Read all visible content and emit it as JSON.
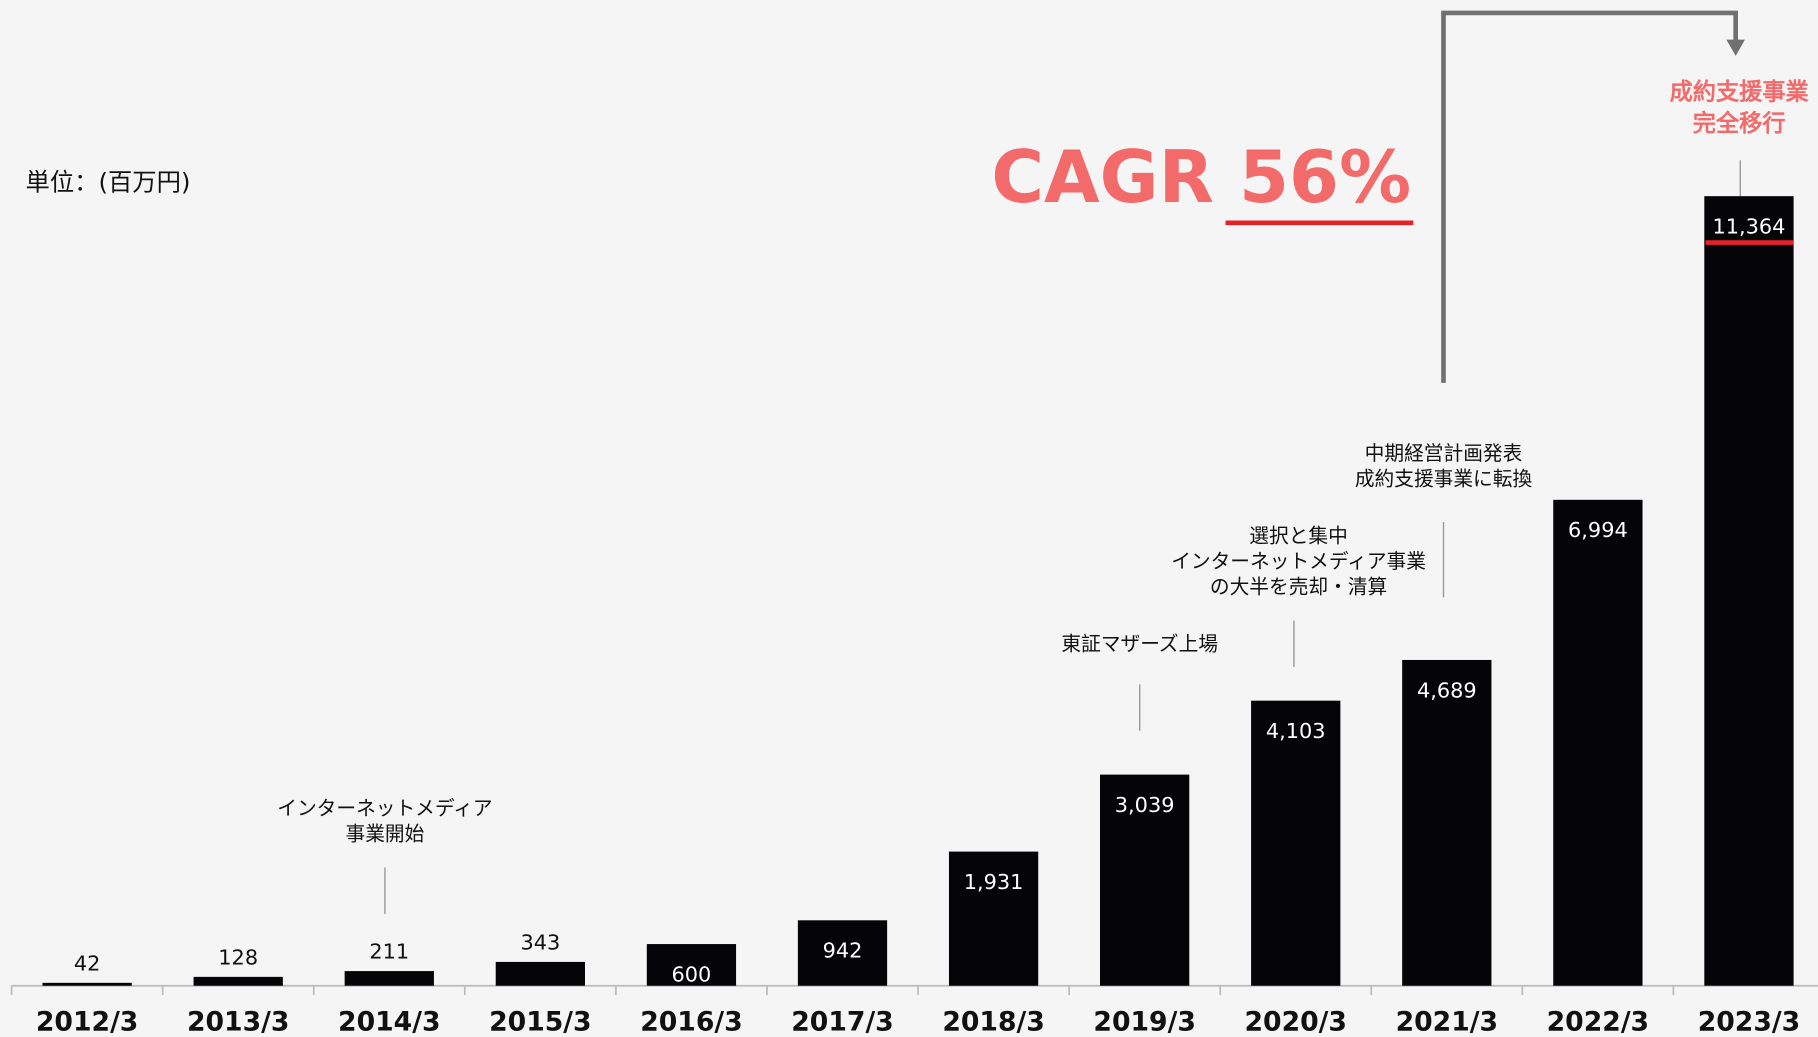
{
  "chart_data": {
    "type": "bar",
    "unit_label": "単位：(百万円)",
    "headline": "CAGR 56%",
    "categories": [
      "2012/3",
      "2013/3",
      "2014/3",
      "2015/3",
      "2016/3",
      "2017/3",
      "2018/3",
      "2019/3",
      "2020/3",
      "2021/3",
      "2022/3",
      "2023/3"
    ],
    "values": [
      42,
      128,
      211,
      343,
      600,
      942,
      1931,
      3039,
      4103,
      4689,
      6994,
      11364
    ],
    "value_labels": [
      "42",
      "128",
      "211",
      "343",
      "600",
      "942",
      "1,931",
      "3,039",
      "4,103",
      "4,689",
      "6,994",
      "11,364"
    ],
    "color": "#050508",
    "annotations": [
      {
        "lines": [
          "インターネットメディア",
          "事業開始"
        ]
      },
      {
        "lines": [
          "東証マザーズ上場"
        ]
      },
      {
        "lines": [
          "選択と集中",
          "インターネットメディア事業",
          "の大半を売却・清算"
        ]
      },
      {
        "lines": [
          "中期経営計画発表",
          "成約支援事業に転換"
        ]
      },
      {
        "lines": [
          "成約支援事業",
          "完全移行"
        ]
      }
    ]
  }
}
